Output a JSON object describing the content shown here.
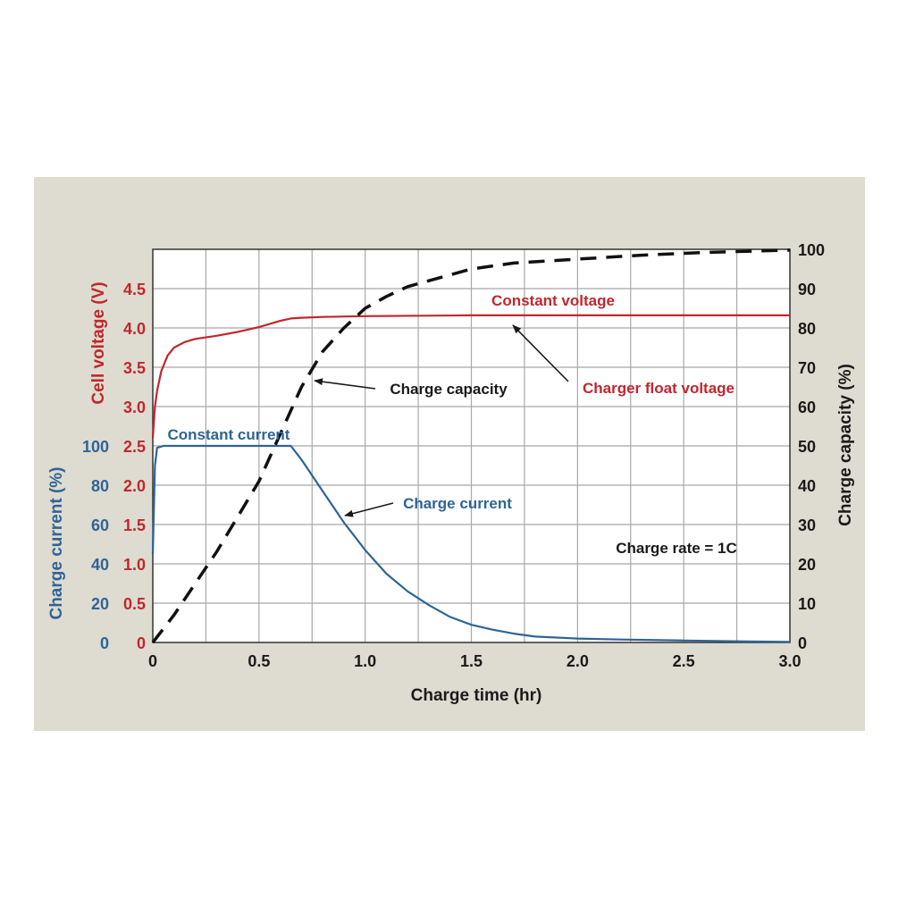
{
  "colors": {
    "panel_bg": "#dedbd0",
    "plot_bg": "#ffffff",
    "grid": "#a8a8a8",
    "voltage": "#c0272d",
    "current": "#2f6496",
    "capacity": "#111111",
    "text": "#1a1a1a"
  },
  "chart_data": {
    "type": "line",
    "xlabel": "Charge time (hr)",
    "xlim": [
      0,
      3.0
    ],
    "x_ticks": [
      "0",
      "0.5",
      "1.0",
      "1.5",
      "2.0",
      "2.5",
      "3.0"
    ],
    "y_left_voltage": {
      "label": "Cell voltage (V)",
      "ylim": [
        0,
        5.0
      ],
      "ticks": [
        "0",
        "0.5",
        "1.0",
        "1.5",
        "2.0",
        "2.5",
        "3.0",
        "3.5",
        "4.0",
        "4.5"
      ]
    },
    "y_left_current": {
      "label": "Charge current (%)",
      "ylim": [
        0,
        100
      ],
      "ticks": [
        "0",
        "20",
        "40",
        "60",
        "80",
        "100"
      ]
    },
    "y_right_capacity": {
      "label": "Charge capacity (%)",
      "ylim": [
        0,
        100
      ],
      "ticks": [
        "0",
        "10",
        "20",
        "30",
        "40",
        "50",
        "60",
        "70",
        "80",
        "90",
        "100"
      ]
    },
    "grid": true,
    "series": [
      {
        "name": "Cell voltage",
        "axis": "voltage",
        "style": "solid",
        "x": [
          0,
          0.01,
          0.02,
          0.04,
          0.07,
          0.1,
          0.15,
          0.2,
          0.3,
          0.4,
          0.5,
          0.55,
          0.6,
          0.65,
          0.7,
          0.8,
          1.0,
          1.5,
          2.0,
          2.5,
          3.0
        ],
        "values": [
          2.6,
          3.0,
          3.2,
          3.45,
          3.65,
          3.75,
          3.82,
          3.86,
          3.9,
          3.95,
          4.01,
          4.05,
          4.09,
          4.12,
          4.13,
          4.14,
          4.15,
          4.16,
          4.16,
          4.16,
          4.16
        ]
      },
      {
        "name": "Charge current",
        "axis": "current",
        "style": "solid",
        "x": [
          0,
          0.01,
          0.02,
          0.05,
          0.65,
          0.7,
          0.8,
          0.9,
          1.0,
          1.1,
          1.2,
          1.3,
          1.4,
          1.5,
          1.6,
          1.7,
          1.8,
          2.0,
          2.2,
          2.5,
          2.8,
          3.0
        ],
        "values": [
          45,
          90,
          99,
          100,
          100,
          93,
          77,
          61,
          47,
          35,
          26,
          19,
          13,
          9,
          6.5,
          4.5,
          3,
          2,
          1.5,
          1,
          0.5,
          0.3
        ]
      },
      {
        "name": "Charge capacity",
        "axis": "capacity",
        "style": "dashed",
        "x": [
          0,
          0.1,
          0.2,
          0.3,
          0.4,
          0.5,
          0.6,
          0.7,
          0.8,
          0.9,
          1.0,
          1.1,
          1.2,
          1.3,
          1.5,
          1.7,
          2.0,
          2.3,
          2.6,
          3.0
        ],
        "values": [
          0,
          7,
          15,
          23,
          32,
          41,
          53,
          65,
          74,
          80,
          85,
          88,
          90.5,
          92,
          95,
          96.5,
          97.5,
          98.5,
          99.2,
          99.8
        ]
      }
    ],
    "annotations": {
      "constant_voltage": "Constant voltage",
      "charger_float_voltage": "Charger float voltage",
      "charge_capacity": "Charge capacity",
      "constant_current": "Constant current",
      "charge_current": "Charge current",
      "charge_rate": "Charge rate = 1C"
    }
  }
}
